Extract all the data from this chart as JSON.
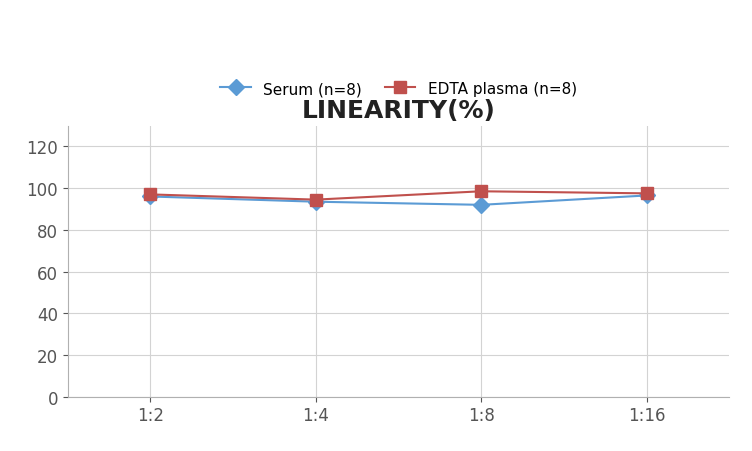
{
  "title": "LINEARITY(%)",
  "title_fontsize": 18,
  "title_fontweight": "bold",
  "x_labels": [
    "1:2",
    "1:4",
    "1:8",
    "1:16"
  ],
  "x_positions": [
    0,
    1,
    2,
    3
  ],
  "serum_values": [
    96.0,
    93.5,
    92.0,
    96.5
  ],
  "edta_values": [
    97.0,
    94.5,
    98.5,
    97.5
  ],
  "serum_color": "#5b9bd5",
  "edta_color": "#c0504d",
  "serum_label": "Serum (n=8)",
  "edta_label": "EDTA plasma (n=8)",
  "ylim": [
    0,
    130
  ],
  "yticks": [
    0,
    20,
    40,
    60,
    80,
    100,
    120
  ],
  "background_color": "#ffffff",
  "grid_color": "#d3d3d3",
  "legend_fontsize": 11,
  "axis_fontsize": 12,
  "linewidth": 1.5,
  "markersize": 8
}
